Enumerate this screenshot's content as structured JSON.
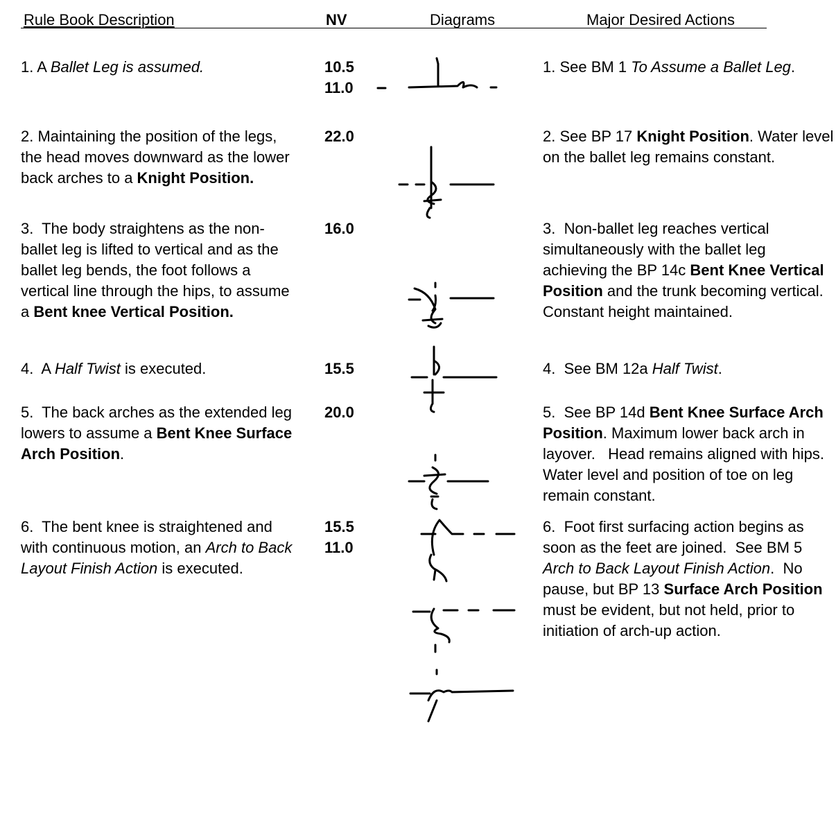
{
  "header": [
    "Rule Book Description",
    "NV",
    "Diagrams",
    "Major Desired Actions"
  ],
  "rows": [
    {
      "description": [
        "1. A ",
        {
          "text": "Ballet Leg is assumed.",
          "style": "italic"
        }
      ],
      "nv": [
        "10.5",
        "11.0"
      ],
      "actions": [
        "1. See BM 1 ",
        {
          "text": "To Assume a Ballet Leg",
          "style": "italic"
        },
        "."
      ]
    },
    {
      "description": [
        "2. Maintaining the position of the legs, the head moves downward as the lower back arches to a ",
        {
          "text": "Knight Position.",
          "style": "bold"
        }
      ],
      "nv": [
        "22.0"
      ],
      "actions": [
        "2. See BP 17 ",
        {
          "text": "Knight Position",
          "style": "bold"
        },
        ". Water level on the ballet leg remains constant."
      ]
    },
    {
      "description": [
        "3.  The body straightens as the non-ballet leg is lifted to vertical and as the ballet leg bends, the foot follows a vertical line through the hips, to assume a ",
        {
          "text": "Bent knee Vertical Position.",
          "style": "bold"
        }
      ],
      "nv": [
        "16.0"
      ],
      "actions": [
        "3.  Non-ballet leg reaches vertical simultaneously with the ballet leg achieving the BP 14c ",
        {
          "text": "Bent Knee Vertical Position",
          "style": "bold"
        },
        " and the trunk becoming vertical. Constant height maintained."
      ]
    },
    {
      "description": [
        "4.  A ",
        {
          "text": "Half Twist",
          "style": "italic"
        },
        " is executed."
      ],
      "nv": [
        "15.5"
      ],
      "actions": [
        "4.  See BM 12a ",
        {
          "text": "Half Twist",
          "style": "italic"
        },
        "."
      ]
    },
    {
      "description": [
        "5.  The back arches as the extended leg lowers to assume a ",
        {
          "text": "Bent Knee Surface Arch Position",
          "style": "bold"
        },
        "."
      ],
      "nv": [
        "20.0"
      ],
      "actions": [
        "5.  See BP 14d ",
        {
          "text": "Bent Knee Surface Arch Position",
          "style": "bold"
        },
        ". Maximum lower back arch in layover.   Head remains aligned with hips.  Water level and position of toe on leg remain constant."
      ]
    },
    {
      "description": [
        "6.  The bent knee is straightened and with continuous motion, an ",
        {
          "text": "Arch to Back Layout Finish Action",
          "style": "italic"
        },
        " is executed."
      ],
      "nv": [
        "15.5",
        "11.0"
      ],
      "actions": [
        "6.  Foot first surfacing action begins as soon as the feet are joined.  See BM 5 ",
        {
          "text": "Arch to Back Layout Finish Action",
          "style": "italic"
        },
        ".  No pause, but BP 13 ",
        {
          "text": "Surface Arch Position",
          "style": "bold"
        },
        " must be evident, but not held, prior to initiation of arch-up action."
      ]
    }
  ]
}
